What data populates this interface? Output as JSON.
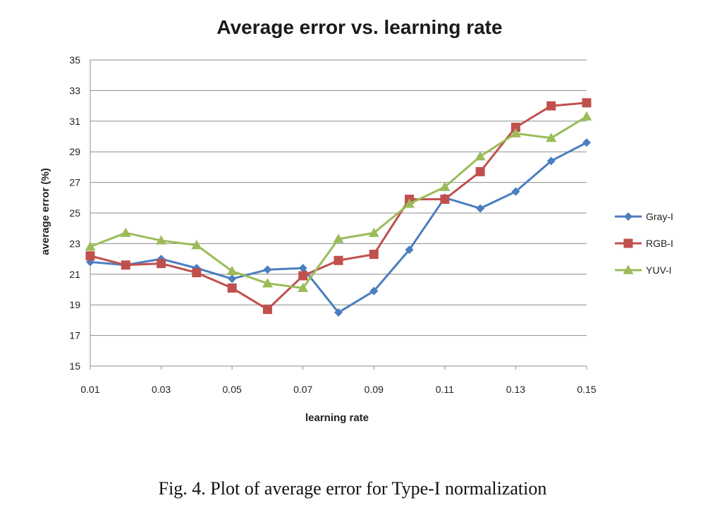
{
  "chart_data": {
    "type": "line",
    "title": "Average error vs. learning rate",
    "xlabel": "learning rate",
    "ylabel": "average error (%)",
    "x": [
      0.01,
      0.02,
      0.03,
      0.04,
      0.05,
      0.06,
      0.07,
      0.08,
      0.09,
      0.1,
      0.11,
      0.12,
      0.13,
      0.14,
      0.15
    ],
    "xticks": [
      "0.01",
      "0.03",
      "0.05",
      "0.07",
      "0.09",
      "0.11",
      "0.13",
      "0.15"
    ],
    "yticks": [
      "15",
      "17",
      "19",
      "21",
      "23",
      "25",
      "27",
      "29",
      "31",
      "33",
      "35"
    ],
    "ylim": [
      15,
      35
    ],
    "xlim": [
      0.01,
      0.15
    ],
    "grid": "horizontal",
    "legend_position": "right",
    "series": [
      {
        "name": "Gray-I",
        "color": "#4a7ebf",
        "marker": "diamond",
        "values": [
          21.8,
          21.6,
          22.0,
          21.4,
          20.7,
          21.3,
          21.4,
          18.5,
          19.9,
          22.6,
          26.0,
          25.3,
          26.4,
          28.4,
          29.6
        ]
      },
      {
        "name": "RGB-I",
        "color": "#c0504d",
        "marker": "square",
        "values": [
          22.2,
          21.6,
          21.7,
          21.1,
          20.1,
          18.7,
          20.9,
          21.9,
          22.3,
          25.9,
          25.9,
          27.7,
          30.6,
          32.0,
          32.2
        ]
      },
      {
        "name": "YUV-I",
        "color": "#9bbb59",
        "marker": "triangle",
        "values": [
          22.8,
          23.7,
          23.2,
          22.9,
          21.2,
          20.4,
          20.1,
          23.3,
          23.7,
          25.6,
          26.7,
          28.7,
          30.2,
          29.9,
          31.3
        ]
      }
    ]
  },
  "caption": "Fig. 4.  Plot of average error for Type-I normalization"
}
